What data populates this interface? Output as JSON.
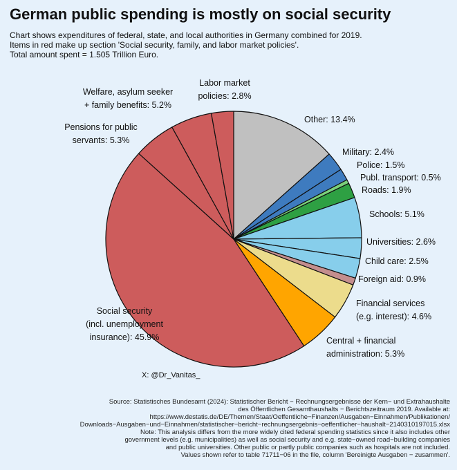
{
  "header": {
    "title": "German public spending is mostly on social security",
    "subtitle_lines": [
      "Chart shows expenditures of federal, state, and local authorities in Germany combined for 2019.",
      "Items in red make up section 'Social security, family, and labor market policies'.",
      "Total amount spent = 1.505 Trillion Euro."
    ]
  },
  "chart_data": {
    "type": "pie",
    "title": "German public spending is mostly on social security",
    "total": "1.505 Trillion Euro",
    "slices": [
      {
        "name": "Other",
        "value": 13.4,
        "color": "#c0c0c0",
        "label_lines": [
          "Other: 13.4%"
        ]
      },
      {
        "name": "Military",
        "value": 2.4,
        "color": "#3e7bbf",
        "label_lines": [
          "Military: 2.4%"
        ]
      },
      {
        "name": "Police",
        "value": 1.5,
        "color": "#3e7bbf",
        "label_lines": [
          "Police: 1.5%"
        ]
      },
      {
        "name": "Publ. transport",
        "value": 0.5,
        "color": "#7bd17b",
        "label_lines": [
          "Publ. transport: 0.5%"
        ]
      },
      {
        "name": "Roads",
        "value": 1.9,
        "color": "#2ea043",
        "label_lines": [
          "Roads: 1.9%"
        ]
      },
      {
        "name": "Schools",
        "value": 5.1,
        "color": "#87ceeb",
        "label_lines": [
          "Schools: 5.1%"
        ]
      },
      {
        "name": "Universities",
        "value": 2.6,
        "color": "#87ceeb",
        "label_lines": [
          "Universities: 2.6%"
        ]
      },
      {
        "name": "Child care",
        "value": 2.5,
        "color": "#87ceeb",
        "label_lines": [
          "Child care: 2.5%"
        ]
      },
      {
        "name": "Foreign aid",
        "value": 0.9,
        "color": "#c48e8e",
        "label_lines": [
          "Foreign aid: 0.9%"
        ]
      },
      {
        "name": "Financial services (e.g. interest)",
        "value": 4.6,
        "color": "#ecdc8c",
        "label_lines": [
          "Financial services",
          "(e.g. interest): 4.6%"
        ]
      },
      {
        "name": "Central + financial administration",
        "value": 5.3,
        "color": "#ffa500",
        "label_lines": [
          "Central + financial",
          "administration: 5.3%"
        ]
      },
      {
        "name": "Social security (incl. unemployment insurance)",
        "value": 45.9,
        "color": "#cd5c5c",
        "label_lines": [
          "Social security",
          "(incl. unemployment",
          "insurance): 45.9%"
        ]
      },
      {
        "name": "Pensions for public servants",
        "value": 5.3,
        "color": "#cd5c5c",
        "label_lines": [
          "Pensions for public",
          "servants: 5.3%"
        ]
      },
      {
        "name": "Welfare, asylum seeker + family benefits",
        "value": 5.2,
        "color": "#cd5c5c",
        "label_lines": [
          "Welfare, asylum seeker",
          "+ family benefits: 5.2%"
        ]
      },
      {
        "name": "Labor market policies",
        "value": 2.8,
        "color": "#cd5c5c",
        "label_lines": [
          "Labor market",
          "policies: 2.8%"
        ]
      }
    ]
  },
  "footer": {
    "handle": "X: @Dr_Vanitas_",
    "source_lines": [
      "Source: Statistisches Bundesamt (2024): Statistischer Bericht − Rechnungsergebnisse der Kern− und Extrahaushalte",
      "des Öffentlichen Gesamthaushalts − Berichtszeitraum 2019. Available at:",
      "https://www.destatis.de/DE/Themen/Staat/Oeffentliche−Finanzen/Ausgaben−Einnahmen/Publikationen/",
      "Downloads−Ausgaben−und−Einnahmen/statistischer−bericht−rechnungsergebnis−oeffentlicher−haushalt−2140310197015.xlsx",
      "Note: This analysis differs from the more widely cited federal spending statistics since it also includes other",
      "government levels (e.g. municipalities) as well as social security and e.g. state−owned road−building companies",
      "and public universities. Other public  or partly public companies such as hospitals are not included.",
      "Values shown refer to table 71711−06 in the file, column 'Bereinigte Ausgaben − zusammen'."
    ]
  }
}
